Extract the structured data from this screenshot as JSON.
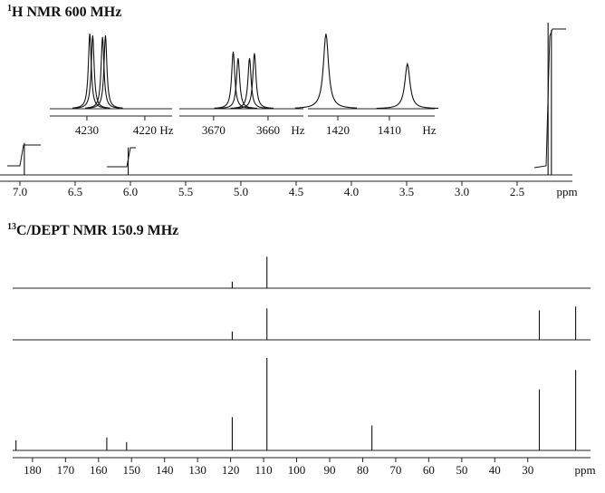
{
  "chart_data": [
    {
      "type": "spectrum",
      "title_sup": "1",
      "title": "H NMR 600 MHz",
      "xlabel": "ppm",
      "xlim": [
        7.18,
        2.0
      ],
      "xticks": [
        {
          "value": 7,
          "label": "7.0"
        },
        6.5,
        {
          "value": 6,
          "label": "6.0"
        },
        5.5,
        {
          "value": 5,
          "label": "5.0"
        },
        4.5,
        {
          "value": 4,
          "label": "4.0"
        },
        3.5,
        {
          "value": 3,
          "label": "3.0"
        },
        2.5
      ],
      "series": [
        {
          "x": [
            6.96,
            6.02,
            2.22,
            2.19
          ],
          "values": [
            21,
            18,
            100,
            95
          ]
        }
      ]
    },
    {
      "type": "inset",
      "xlabel": "Hz",
      "xlim": [
        4236.4,
        4215.3
      ],
      "xticks": [
        4230,
        4220
      ],
      "series": [
        {
          "x": [
            4229.5,
            4229.0,
            4227.3,
            4226.8
          ],
          "values": [
            92,
            90,
            88,
            90
          ]
        }
      ]
    },
    {
      "type": "inset",
      "xlabel": "Hz",
      "xlim": [
        3676.3,
        3653.5
      ],
      "xticks": [
        3670,
        3660
      ],
      "series": [
        {
          "x": [
            3666.4,
            3665.5,
            3663.4,
            3662.5
          ],
          "values": [
            70,
            62,
            62,
            68
          ]
        }
      ]
    },
    {
      "type": "inset",
      "xlabel": "Hz",
      "xlim": [
        1425.8,
        1401.2
      ],
      "xticks": [
        1420,
        1410
      ],
      "series": [
        {
          "x": [
            1422.3,
            1406.5
          ],
          "values": [
            92,
            55
          ]
        }
      ]
    },
    {
      "type": "spectrum",
      "title_sup": "13",
      "title": "C/DEPT NMR 150.9 MHz",
      "xlabel": "ppm",
      "xlim": [
        186,
        11
      ],
      "xticks": [
        180,
        170,
        160,
        150,
        140,
        130,
        120,
        110,
        100,
        90,
        80,
        70,
        60,
        50,
        40,
        30
      ],
      "series": [
        {
          "x": [
            119.5,
            109
          ],
          "values": [
            7,
            34
          ]
        },
        {
          "x": [
            119.5,
            109,
            26.5,
            15.5
          ],
          "values": [
            9,
            34,
            32,
            36
          ]
        },
        {
          "x": [
            185,
            157.5,
            151.5,
            119.5,
            109,
            77.2,
            26.5,
            15.5
          ],
          "values": [
            11,
            14,
            9,
            36,
            100,
            27,
            66,
            87
          ]
        }
      ]
    }
  ]
}
